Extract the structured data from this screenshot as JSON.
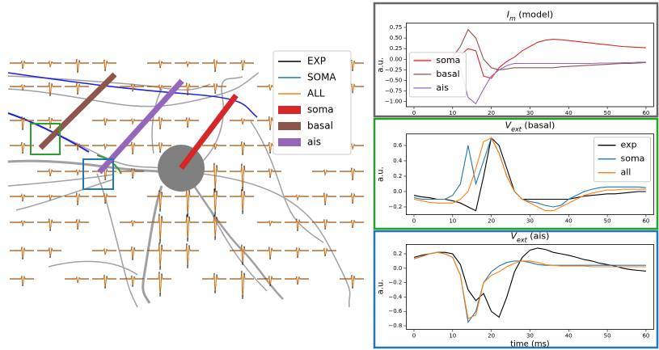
{
  "morphology_legend": [
    {
      "name": "EXP",
      "color": "#000000",
      "kind": "line"
    },
    {
      "name": "SOMA",
      "color": "#1f77b4",
      "kind": "line"
    },
    {
      "name": "ALL",
      "color": "#ff7f0e",
      "kind": "line"
    },
    {
      "name": "soma",
      "color": "#d62728",
      "kind": "patch"
    },
    {
      "name": "basal",
      "color": "#8c564b",
      "kind": "patch"
    },
    {
      "name": "ais",
      "color": "#9467bd",
      "kind": "patch"
    }
  ],
  "chart_data": [
    {
      "type": "line",
      "title_parts": [
        "I",
        "m",
        " (model)"
      ],
      "frame_color": "#666666",
      "ylabel": "a.u.",
      "legend": "center left",
      "x": [
        0,
        2,
        4,
        6,
        8,
        10,
        12,
        14,
        16,
        18,
        20,
        22,
        24,
        26,
        28,
        30,
        32,
        34,
        36,
        38,
        40,
        42,
        44,
        46,
        48,
        50,
        52,
        54,
        56,
        58,
        60
      ],
      "xlim": [
        -2,
        62
      ],
      "xticks": [
        0,
        10,
        20,
        30,
        40,
        50,
        60
      ],
      "ylim": [
        -1.12,
        0.85
      ],
      "yticks": [
        {
          "value": -1.0,
          "label": "−1.00"
        },
        {
          "value": -0.75,
          "label": "−0.75"
        },
        {
          "value": -0.5,
          "label": "−0.50"
        },
        {
          "value": -0.25,
          "label": "−0.25"
        },
        {
          "value": 0,
          "label": "0.00"
        },
        {
          "value": 0.25,
          "label": "0.25"
        },
        {
          "value": 0.5,
          "label": "0.50"
        },
        {
          "value": 0.75,
          "label": "0.75"
        }
      ],
      "series": [
        {
          "name": "soma",
          "color": "#d62728",
          "values": [
            0,
            0,
            0,
            0,
            0,
            0.02,
            0.1,
            0.25,
            0.2,
            -0.4,
            -0.45,
            -0.2,
            -0.05,
            0.05,
            0.2,
            0.3,
            0.4,
            0.45,
            0.47,
            0.46,
            0.44,
            0.42,
            0.4,
            0.38,
            0.36,
            0.34,
            0.32,
            0.3,
            0.29,
            0.28,
            0.27
          ]
        },
        {
          "name": "basal",
          "color": "#8c564b",
          "values": [
            0,
            0,
            0,
            0,
            0.01,
            0.05,
            0.3,
            0.7,
            0.5,
            0.0,
            -0.2,
            -0.25,
            -0.23,
            -0.2,
            -0.2,
            -0.2,
            -0.2,
            -0.2,
            -0.2,
            -0.18,
            -0.17,
            -0.16,
            -0.15,
            -0.14,
            -0.13,
            -0.12,
            -0.11,
            -0.1,
            -0.1,
            -0.09,
            -0.08
          ]
        },
        {
          "name": "ais",
          "color": "#9467bd",
          "values": [
            -0.05,
            -0.05,
            -0.05,
            -0.05,
            -0.05,
            -0.07,
            -0.2,
            -0.9,
            -1.05,
            -0.7,
            -0.4,
            -0.25,
            -0.15,
            -0.1,
            -0.1,
            -0.1,
            -0.1,
            -0.1,
            -0.1,
            -0.1,
            -0.1,
            -0.1,
            -0.1,
            -0.1,
            -0.09,
            -0.09,
            -0.09,
            -0.08,
            -0.08,
            -0.07,
            -0.07
          ]
        }
      ]
    },
    {
      "type": "line",
      "title_parts": [
        "V",
        "ext",
        " (basal)"
      ],
      "frame_color": "#2ca02c",
      "ylabel": "a.u.",
      "legend": "upper right",
      "x": [
        0,
        2,
        4,
        6,
        8,
        10,
        12,
        14,
        16,
        18,
        20,
        22,
        24,
        26,
        28,
        30,
        32,
        34,
        36,
        38,
        40,
        42,
        44,
        46,
        48,
        50,
        52,
        54,
        56,
        58,
        60
      ],
      "xlim": [
        -2,
        62
      ],
      "xticks": [
        0,
        10,
        20,
        30,
        40,
        50,
        60
      ],
      "ylim": [
        -0.3,
        0.75
      ],
      "yticks": [
        {
          "value": -0.2,
          "label": "−0.2"
        },
        {
          "value": 0,
          "label": "0.0"
        },
        {
          "value": 0.2,
          "label": "0.2"
        },
        {
          "value": 0.4,
          "label": "0.4"
        },
        {
          "value": 0.6,
          "label": "0.6"
        }
      ],
      "series": [
        {
          "name": "exp",
          "color": "#000000",
          "values": [
            -0.05,
            -0.07,
            -0.08,
            -0.1,
            -0.1,
            -0.12,
            -0.15,
            -0.2,
            -0.25,
            0.2,
            0.7,
            0.6,
            0.3,
            0.0,
            -0.1,
            -0.1,
            -0.1,
            -0.1,
            -0.1,
            -0.1,
            -0.1,
            -0.08,
            -0.06,
            -0.05,
            -0.04,
            -0.03,
            -0.03,
            -0.02,
            -0.01,
            0,
            0
          ]
        },
        {
          "name": "soma",
          "color": "#1f77b4",
          "values": [
            -0.08,
            -0.1,
            -0.1,
            -0.1,
            -0.1,
            -0.05,
            0.1,
            0.6,
            0.1,
            0.4,
            0.7,
            0.5,
            0.2,
            0.0,
            -0.1,
            -0.13,
            -0.15,
            -0.18,
            -0.2,
            -0.18,
            -0.1,
            -0.05,
            0,
            0.03,
            0.05,
            0.06,
            0.06,
            0.06,
            0.06,
            0.06,
            0.05
          ]
        },
        {
          "name": "all",
          "color": "#ff7f0e",
          "values": [
            -0.1,
            -0.12,
            -0.14,
            -0.15,
            -0.15,
            -0.15,
            -0.1,
            0.0,
            0.3,
            0.65,
            0.7,
            0.5,
            0.2,
            0.0,
            -0.1,
            -0.15,
            -0.2,
            -0.25,
            -0.25,
            -0.2,
            -0.15,
            -0.1,
            -0.05,
            -0.02,
            0,
            0.02,
            0.02,
            0.03,
            0.03,
            0.03,
            0.03
          ]
        }
      ]
    },
    {
      "type": "line",
      "title_parts": [
        "V",
        "ext",
        " (ais)"
      ],
      "frame_color": "#1f77b4",
      "ylabel": "a.u.",
      "xlabel": "time (ms)",
      "legend": false,
      "x": [
        0,
        2,
        4,
        6,
        8,
        10,
        12,
        14,
        16,
        18,
        20,
        22,
        24,
        26,
        28,
        30,
        32,
        34,
        36,
        38,
        40,
        42,
        44,
        46,
        48,
        50,
        52,
        54,
        56,
        58,
        60
      ],
      "xlim": [
        -2,
        62
      ],
      "xticks": [
        0,
        10,
        20,
        30,
        40,
        50,
        60
      ],
      "ylim": [
        -0.85,
        0.33
      ],
      "yticks": [
        {
          "value": -0.8,
          "label": "−0.8"
        },
        {
          "value": -0.6,
          "label": "−0.6"
        },
        {
          "value": -0.4,
          "label": "−0.4"
        },
        {
          "value": -0.2,
          "label": "−0.2"
        },
        {
          "value": 0,
          "label": "0.0"
        },
        {
          "value": 0.2,
          "label": "0.2"
        }
      ],
      "series": [
        {
          "color": "#000000",
          "values": [
            0.15,
            0.18,
            0.2,
            0.22,
            0.22,
            0.2,
            0.05,
            -0.3,
            -0.45,
            -0.35,
            -0.6,
            -0.68,
            -0.4,
            -0.05,
            0.15,
            0.25,
            0.28,
            0.26,
            0.22,
            0.2,
            0.18,
            0.15,
            0.12,
            0.1,
            0.07,
            0.05,
            0.03,
            0.0,
            -0.02,
            -0.03,
            -0.04
          ]
        },
        {
          "color": "#1f77b4",
          "values": [
            0.13,
            0.16,
            0.2,
            0.22,
            0.2,
            0.15,
            -0.1,
            -0.75,
            -0.6,
            -0.2,
            -0.05,
            0.03,
            0.08,
            0.1,
            0.1,
            0.08,
            0.05,
            0.04,
            0.04,
            0.04,
            0.04,
            0.04,
            0.04,
            0.04,
            0.04,
            0.04,
            0.04,
            0.04,
            0.04,
            0.04,
            0.04
          ]
        },
        {
          "color": "#ff7f0e",
          "values": [
            0.13,
            0.16,
            0.2,
            0.22,
            0.2,
            0.15,
            -0.1,
            -0.7,
            -0.65,
            -0.2,
            -0.1,
            -0.05,
            0.02,
            0.07,
            0.1,
            0.1,
            0.08,
            0.05,
            0.04,
            0.03,
            0.03,
            0.03,
            0.03,
            0.02,
            0.02,
            0.02,
            0.02,
            0.02,
            0.02,
            0.02,
            0.02
          ]
        }
      ]
    }
  ]
}
